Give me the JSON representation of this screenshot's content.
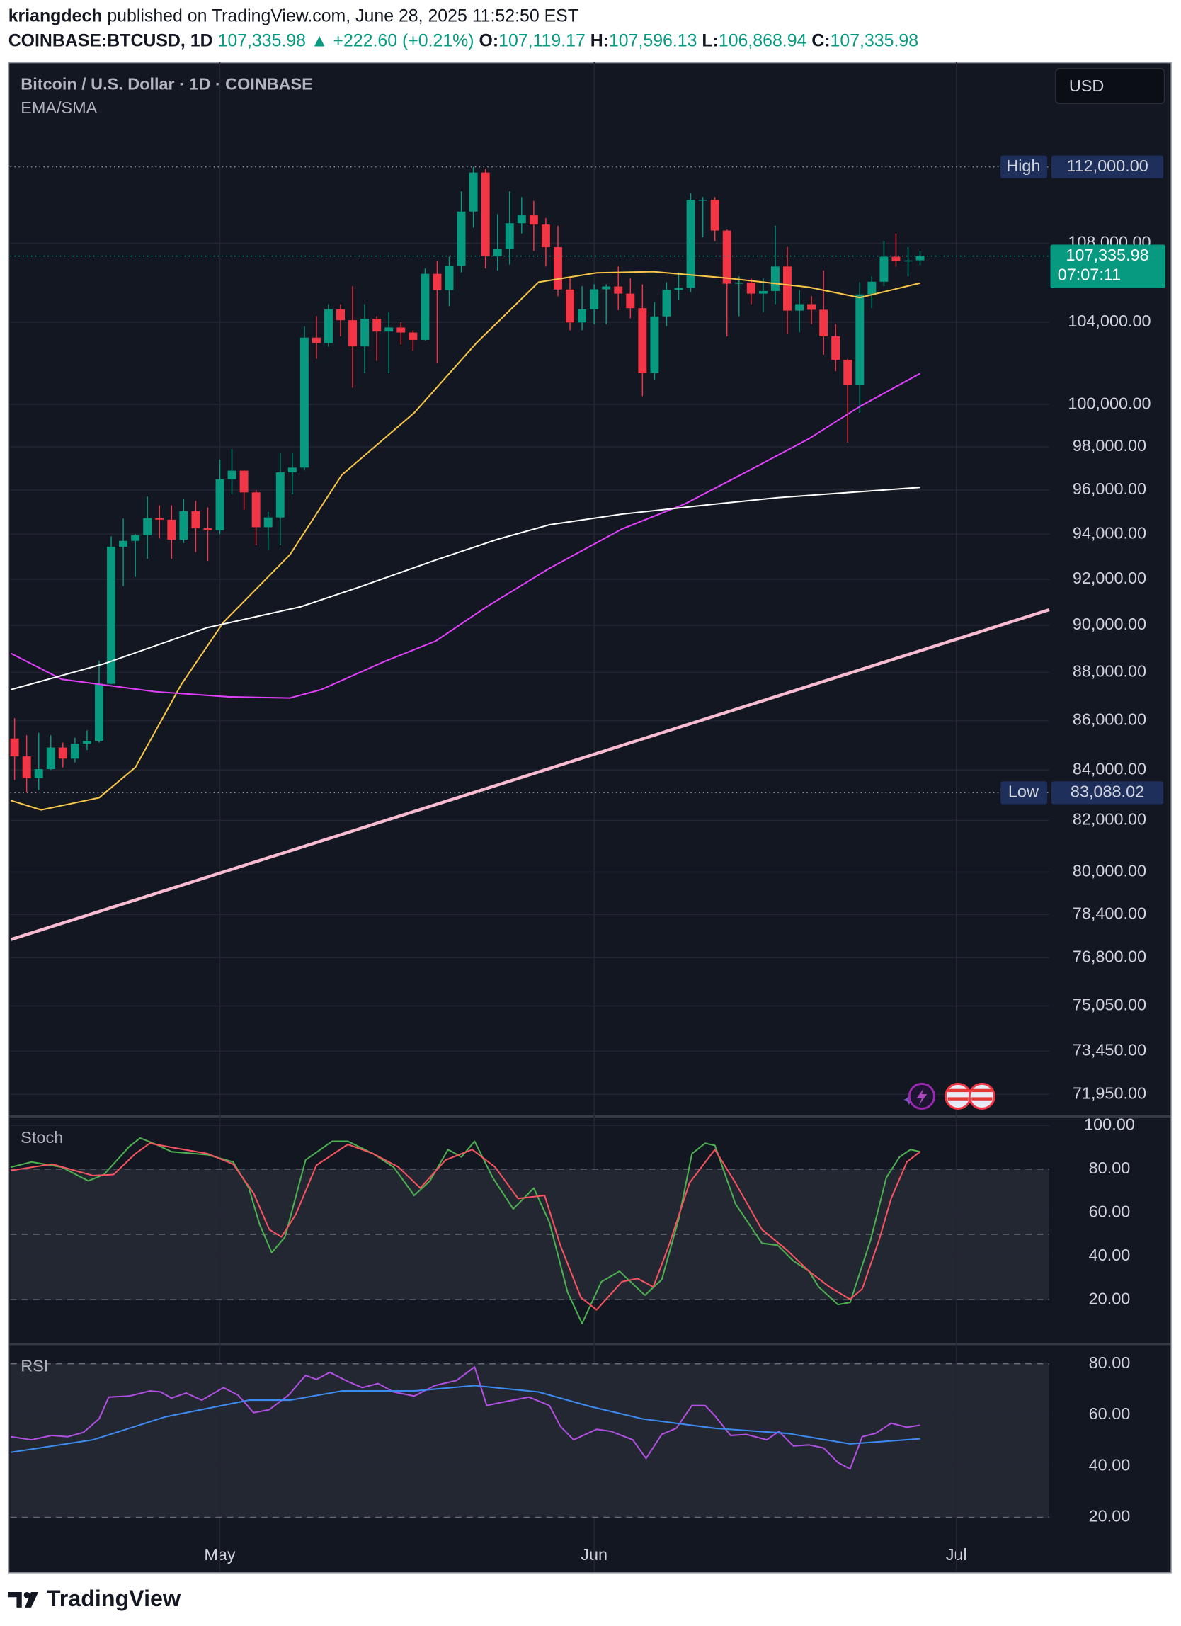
{
  "header": {
    "author": "kriangdech",
    "published": " published on TradingView.com, June 28, 2025 11:52:50 EST",
    "symbol": "COINBASE:BTCUSD, 1D",
    "price": "107,335.98",
    "change": "▲ +222.60 (+0.21%)",
    "ohlc": [
      {
        "key": "O:",
        "value": "107,119.17"
      },
      {
        "key": "H:",
        "value": "107,596.13"
      },
      {
        "key": "L:",
        "value": "106,868.94"
      },
      {
        "key": "C:",
        "value": "107,335.98"
      }
    ]
  },
  "footer": "TradingView",
  "chart_data": [
    {
      "type": "candlestick",
      "title": "Bitcoin / U.S. Dollar · 1D · COINBASE",
      "subtitle": "EMA/SMA",
      "currency": "USD",
      "log_scale": true,
      "grid": true,
      "xlim": [
        -0.35,
        85.7
      ],
      "ylim": [
        71250,
        117620
      ],
      "xticks": [
        {
          "value": 17,
          "label": "May"
        },
        {
          "value": 48,
          "label": "Jun"
        },
        {
          "value": 78,
          "label": "Jul"
        }
      ],
      "yticks": [
        {
          "value": 108000,
          "label": "108,000.00"
        },
        {
          "value": 104000,
          "label": "104,000.00"
        },
        {
          "value": 100000,
          "label": "100,000.00"
        },
        {
          "value": 98000,
          "label": "98,000.00"
        },
        {
          "value": 96000,
          "label": "96,000.00"
        },
        {
          "value": 94000,
          "label": "94,000.00"
        },
        {
          "value": 92000,
          "label": "92,000.00"
        },
        {
          "value": 90000,
          "label": "90,000.00"
        },
        {
          "value": 88000,
          "label": "88,000.00"
        },
        {
          "value": 86000,
          "label": "86,000.00"
        },
        {
          "value": 84000,
          "label": "84,000.00"
        },
        {
          "value": 82000,
          "label": "82,000.00"
        },
        {
          "value": 80000,
          "label": "80,000.00"
        },
        {
          "value": 78400,
          "label": "78,400.00"
        },
        {
          "value": 76800,
          "label": "76,800.00"
        },
        {
          "value": 75050,
          "label": "75,050.00"
        },
        {
          "value": 73450,
          "label": "73,450.00"
        },
        {
          "value": 71950,
          "label": "71,950.00"
        }
      ],
      "up_color": "#089981",
      "down_color": "#f23645",
      "open": [
        85270,
        84540,
        83670,
        84030,
        84900,
        84450,
        85060,
        85170,
        87520,
        93440,
        93700,
        93950,
        94720,
        94650,
        93750,
        95030,
        94260,
        94170,
        96490,
        96890,
        95890,
        94310,
        94750,
        96810,
        97030,
        103240,
        102970,
        104640,
        104100,
        102810,
        104170,
        103540,
        103740,
        103490,
        103130,
        106430,
        105610,
        106830,
        109640,
        111700,
        107320,
        107690,
        109030,
        109440,
        108960,
        107790,
        105640,
        103990,
        104640,
        105650,
        105790,
        105430,
        104700,
        101510,
        104290,
        105620,
        105720,
        110260,
        110260,
        108650,
        105930,
        105990,
        105430,
        105560,
        106800,
        104580,
        104900,
        104620,
        103300,
        102150,
        100920,
        105390,
        106030,
        107300,
        107090,
        107119.17
      ],
      "high": [
        86100,
        85400,
        85500,
        85400,
        85100,
        85300,
        85600,
        88500,
        93900,
        94700,
        94000,
        95700,
        95300,
        95300,
        95600,
        95500,
        95200,
        97400,
        97900,
        96900,
        96000,
        95000,
        97700,
        97700,
        103800,
        104300,
        104900,
        104900,
        105800,
        104900,
        104300,
        104500,
        104000,
        103600,
        106700,
        107100,
        107300,
        110700,
        112000,
        111900,
        109500,
        110700,
        110400,
        110200,
        109300,
        108900,
        106300,
        105800,
        105900,
        105900,
        106800,
        106200,
        105900,
        105000,
        106000,
        106500,
        110600,
        110400,
        110400,
        108700,
        106300,
        106200,
        106200,
        108900,
        107800,
        105600,
        105300,
        106600,
        103900,
        102200,
        106000,
        106300,
        108100,
        108500,
        107800,
        107596.13
      ],
      "low": [
        83600,
        83100,
        83200,
        84000,
        84100,
        84300,
        84800,
        85100,
        87500,
        91700,
        92100,
        92900,
        93800,
        92900,
        93600,
        93200,
        92800,
        94000,
        95800,
        95100,
        93500,
        93300,
        93500,
        95800,
        96900,
        102200,
        102800,
        103300,
        100800,
        101500,
        102100,
        101500,
        102900,
        102600,
        103100,
        102000,
        104800,
        106500,
        108800,
        106700,
        106600,
        106900,
        108500,
        107600,
        106800,
        105300,
        103600,
        103600,
        103900,
        103900,
        104600,
        104200,
        100400,
        101200,
        103800,
        105100,
        105500,
        108300,
        108100,
        103300,
        104300,
        104900,
        104500,
        104900,
        103400,
        103500,
        103900,
        102400,
        101600,
        98200,
        99600,
        104700,
        105800,
        106800,
        106300,
        106868.94
      ],
      "close": [
        84540,
        83670,
        84030,
        84900,
        84450,
        85060,
        85170,
        87520,
        93440,
        93700,
        93950,
        94720,
        94650,
        93750,
        95030,
        94260,
        94170,
        96490,
        96890,
        95890,
        94310,
        94750,
        96810,
        97030,
        103240,
        102970,
        104640,
        104100,
        102810,
        104170,
        103540,
        103740,
        103490,
        103130,
        106430,
        105610,
        106830,
        109640,
        111700,
        107320,
        107690,
        109030,
        109440,
        108960,
        107790,
        105640,
        103990,
        104640,
        105650,
        105790,
        105430,
        104700,
        101510,
        104290,
        105620,
        105720,
        110260,
        110260,
        108650,
        105930,
        105990,
        105430,
        105560,
        106800,
        104580,
        104900,
        104620,
        103300,
        102150,
        100920,
        105390,
        106030,
        107300,
        107090,
        107113.38,
        107335.98
      ],
      "series": [
        {
          "color": "#f7c548",
          "x": [
            -0.3,
            2.2,
            7,
            10,
            13.8,
            17.3,
            22.8,
            27.1,
            33.1,
            38.3,
            43.4,
            48.2,
            52.9,
            58.9,
            65.8,
            70,
            75
          ],
          "values": [
            82780,
            82410,
            82890,
            84100,
            87490,
            90130,
            93080,
            96690,
            99600,
            103010,
            106010,
            106480,
            106540,
            106220,
            105750,
            105230,
            105960
          ]
        },
        {
          "color": "#e040fb",
          "x": [
            -0.3,
            3.9,
            11.7,
            17.7,
            22.8,
            25.4,
            30.6,
            34.9,
            39.1,
            44.3,
            50.3,
            55.5,
            60.6,
            65.8,
            70,
            75
          ],
          "values": [
            88800,
            87710,
            87190,
            86980,
            86930,
            87280,
            88450,
            89330,
            90800,
            92480,
            94230,
            95360,
            96830,
            98380,
            99900,
            101490
          ]
        },
        {
          "color": "#ffffff",
          "x": [
            -0.3,
            7.4,
            15.96,
            23.7,
            28.8,
            34.9,
            40,
            44.3,
            50.3,
            57.2,
            63.2,
            69.2,
            75
          ],
          "values": [
            87280,
            88360,
            89900,
            90800,
            91700,
            92850,
            93770,
            94420,
            94900,
            95310,
            95650,
            95890,
            96120
          ]
        },
        {
          "color": "#f8bbd0",
          "width": 3,
          "x": [
            -0.3,
            85.7
          ],
          "values": [
            77470,
            90670
          ]
        }
      ],
      "markers": [
        {
          "label": "High",
          "value": 112000,
          "value_label": "112,000.00"
        },
        {
          "label": "Low",
          "value": 83088.02,
          "value_label": "83,088.02"
        }
      ],
      "last_price": {
        "value": 107335.98,
        "value_label": "107,335.98",
        "countdown": "07:07:11"
      }
    },
    {
      "type": "line",
      "title": "Stoch",
      "xlim": [
        -0.35,
        85.7
      ],
      "ylim": [
        0,
        103.5
      ],
      "grid": true,
      "xticks": [
        {
          "value": 17,
          "label": "May"
        },
        {
          "value": 48,
          "label": "Jun"
        },
        {
          "value": 78,
          "label": "Jul"
        }
      ],
      "yticks": [
        {
          "value": 100,
          "label": "100.00"
        },
        {
          "value": 80,
          "label": "80.00"
        },
        {
          "value": 60,
          "label": "60.00"
        },
        {
          "value": 40,
          "label": "40.00"
        },
        {
          "value": 20,
          "label": "20.00"
        }
      ],
      "band": [
        20,
        80
      ],
      "dashed_lines": [
        80,
        50,
        20
      ],
      "series": [
        {
          "color": "#4caf50",
          "x": [
            -0.3,
            1.4,
            3.9,
            6.1,
            7.4,
            9.5,
            10.4,
            11.7,
            13,
            16,
            18.1,
            19.4,
            20.3,
            21.3,
            22.4,
            24.1,
            26.3,
            27.6,
            29.7,
            31.4,
            33.1,
            34.4,
            35.9,
            37,
            38.1,
            39.6,
            41.3,
            43,
            44.3,
            45.8,
            47,
            48.6,
            50.1,
            52.2,
            53.6,
            55,
            56.1,
            57.2,
            58,
            59.7,
            61.9,
            63.2,
            64.5,
            65.8,
            66.6,
            68.2,
            69.2,
            70.9,
            72.2,
            73.3,
            74.2,
            75
          ],
          "values": [
            80.9,
            83.3,
            80.9,
            74.6,
            77.5,
            90.4,
            94.3,
            91.4,
            88.0,
            86.6,
            83.3,
            71.3,
            54.5,
            41.6,
            48.8,
            84.2,
            92.8,
            92.8,
            87.1,
            80.9,
            67.9,
            74.6,
            89.0,
            85.6,
            92.8,
            76.1,
            61.7,
            71.3,
            55.5,
            23.4,
            9.0,
            28.2,
            33.0,
            22.0,
            29.2,
            56.9,
            87.1,
            91.9,
            90.9,
            64.1,
            45.9,
            45.0,
            37.8,
            33.0,
            25.8,
            17.7,
            18.7,
            47.4,
            76.1,
            85.6,
            89.0,
            88.0
          ]
        },
        {
          "color": "#f7525f",
          "x": [
            -0.3,
            3.1,
            6.5,
            8.2,
            10,
            11.2,
            13,
            16,
            18.1,
            19.8,
            21.1,
            22.1,
            23.3,
            25,
            27.6,
            29.7,
            31.8,
            33.6,
            35.7,
            37.9,
            39.8,
            41.7,
            43.9,
            45.2,
            46.9,
            48.2,
            50.3,
            51.6,
            52.9,
            54.2,
            55.9,
            58,
            59.7,
            61.9,
            64,
            65.8,
            67.5,
            69.2,
            70.2,
            71.6,
            72.6,
            73.9,
            75
          ],
          "values": [
            79.4,
            82.3,
            77.0,
            77.5,
            87.1,
            91.9,
            90.0,
            87.1,
            82.3,
            68.9,
            52.2,
            48.8,
            59.3,
            81.8,
            91.4,
            87.1,
            80.9,
            71.3,
            84.2,
            89.0,
            80.9,
            66.5,
            67.9,
            45.0,
            21.0,
            15.3,
            28.2,
            29.7,
            25.8,
            45.0,
            73.7,
            89.0,
            73.7,
            52.2,
            42.6,
            33.0,
            25.8,
            20.1,
            24.9,
            47.4,
            66.5,
            83.3,
            88.0
          ]
        }
      ]
    },
    {
      "type": "line",
      "title": "RSI",
      "xlim": [
        -0.35,
        85.7
      ],
      "ylim": [
        12.3,
        87.3
      ],
      "grid": true,
      "xticks": [
        {
          "value": 17,
          "label": "May"
        },
        {
          "value": 48,
          "label": "Jun"
        },
        {
          "value": 78,
          "label": "Jul"
        }
      ],
      "yticks": [
        {
          "value": 80,
          "label": "80.00"
        },
        {
          "value": 60,
          "label": "60.00"
        },
        {
          "value": 40,
          "label": "40.00"
        },
        {
          "value": 20,
          "label": "20.00"
        }
      ],
      "band": [
        20,
        80
      ],
      "dashed_lines": [
        80,
        20
      ],
      "series": [
        {
          "color": "#b04fe0",
          "x": [
            -0.3,
            1.4,
            3.1,
            4.4,
            5.7,
            7,
            7.8,
            9.5,
            11.2,
            12.1,
            13,
            14.2,
            15.5,
            17.3,
            18.5,
            19.8,
            21.1,
            22.7,
            24.1,
            25,
            26.1,
            27.6,
            28.8,
            30.1,
            31.4,
            33.1,
            34.8,
            36.6,
            38.1,
            39.1,
            40.4,
            42.6,
            44.3,
            45.2,
            46.3,
            48.2,
            49.4,
            51.2,
            52.3,
            53.6,
            54.8,
            56.1,
            57.2,
            58,
            59.3,
            60.6,
            62.3,
            63.3,
            64.5,
            65.8,
            67,
            68.2,
            69.2,
            70.2,
            71.3,
            72.6,
            73.9,
            75
          ],
          "values": [
            51.5,
            50.3,
            52.0,
            51.5,
            53.2,
            58.5,
            67.0,
            67.4,
            69.4,
            69.0,
            66.6,
            68.6,
            65.8,
            70.7,
            67.8,
            60.9,
            62.1,
            67.8,
            75.5,
            73.9,
            76.7,
            73.1,
            70.7,
            72.3,
            69.0,
            67.4,
            71.5,
            73.5,
            78.8,
            63.7,
            65.0,
            67.0,
            63.7,
            55.6,
            50.3,
            54.4,
            53.6,
            50.3,
            43.0,
            52.4,
            54.8,
            63.7,
            63.7,
            59.7,
            52.0,
            52.4,
            50.3,
            53.6,
            47.9,
            48.3,
            47.1,
            41.4,
            38.9,
            51.5,
            52.8,
            56.8,
            55.2,
            56.0
          ]
        },
        {
          "color": "#3d8bf0",
          "x": [
            -0.3,
            6.5,
            12.5,
            19.4,
            22.8,
            27.1,
            33.1,
            38.1,
            43.4,
            47.7,
            52,
            58,
            64,
            69.2,
            75
          ],
          "values": [
            45.4,
            50.3,
            59.3,
            65.8,
            65.8,
            69.4,
            69.4,
            71.5,
            69.0,
            63.3,
            58.5,
            54.8,
            52.8,
            48.7,
            50.7
          ]
        }
      ]
    }
  ]
}
